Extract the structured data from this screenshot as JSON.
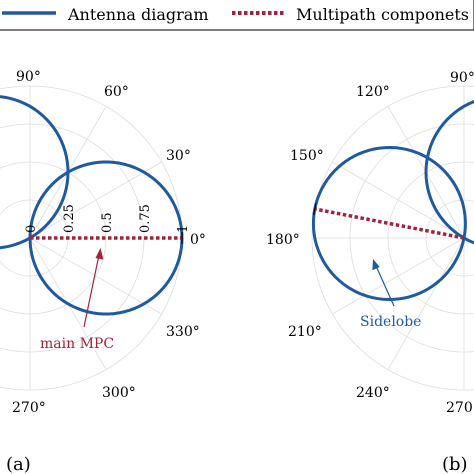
{
  "legend": {
    "items": [
      {
        "label": "Antenna diagram",
        "color": "#1f5aa0",
        "style": "solid"
      },
      {
        "label": "Multipath componets",
        "color": "#a3223c",
        "style": "dotted"
      }
    ]
  },
  "chart_data": [
    {
      "type": "polar",
      "panel_label": "(a)",
      "angle_ticks_deg": [
        "0°",
        "30°",
        "60°",
        "90°",
        "270°",
        "300°",
        "330°"
      ],
      "radial_ticks": [
        "0",
        "0.25",
        "0.5",
        "0.75",
        "1"
      ],
      "rlim": [
        0,
        1
      ],
      "series": [
        {
          "name": "Antenna diagram",
          "kind": "lobes",
          "lobes": [
            {
              "direction_deg": 0,
              "gain": 1.0
            },
            {
              "direction_deg": 120,
              "gain": 1.0
            }
          ]
        },
        {
          "name": "Multipath componets",
          "kind": "ray",
          "direction_deg": 0,
          "magnitude": 1.0
        }
      ],
      "annotations": [
        {
          "text": "main MPC",
          "color": "#a3223c"
        }
      ],
      "grid": true
    },
    {
      "type": "polar",
      "panel_label": "(b)",
      "angle_ticks_deg": [
        "90°",
        "120°",
        "150°",
        "180°",
        "210°",
        "240°",
        "270°"
      ],
      "series": [
        {
          "name": "Antenna diagram",
          "kind": "lobes",
          "lobes": [
            {
              "direction_deg": 169,
              "gain": 1.0
            },
            {
              "direction_deg": 60,
              "gain": 1.0
            }
          ]
        },
        {
          "name": "Multipath componets",
          "kind": "ray",
          "direction_deg": 169,
          "magnitude": 1.0
        }
      ],
      "annotations": [
        {
          "text": "Sidelobe",
          "color": "#1f5aa0"
        }
      ],
      "grid": true
    }
  ]
}
